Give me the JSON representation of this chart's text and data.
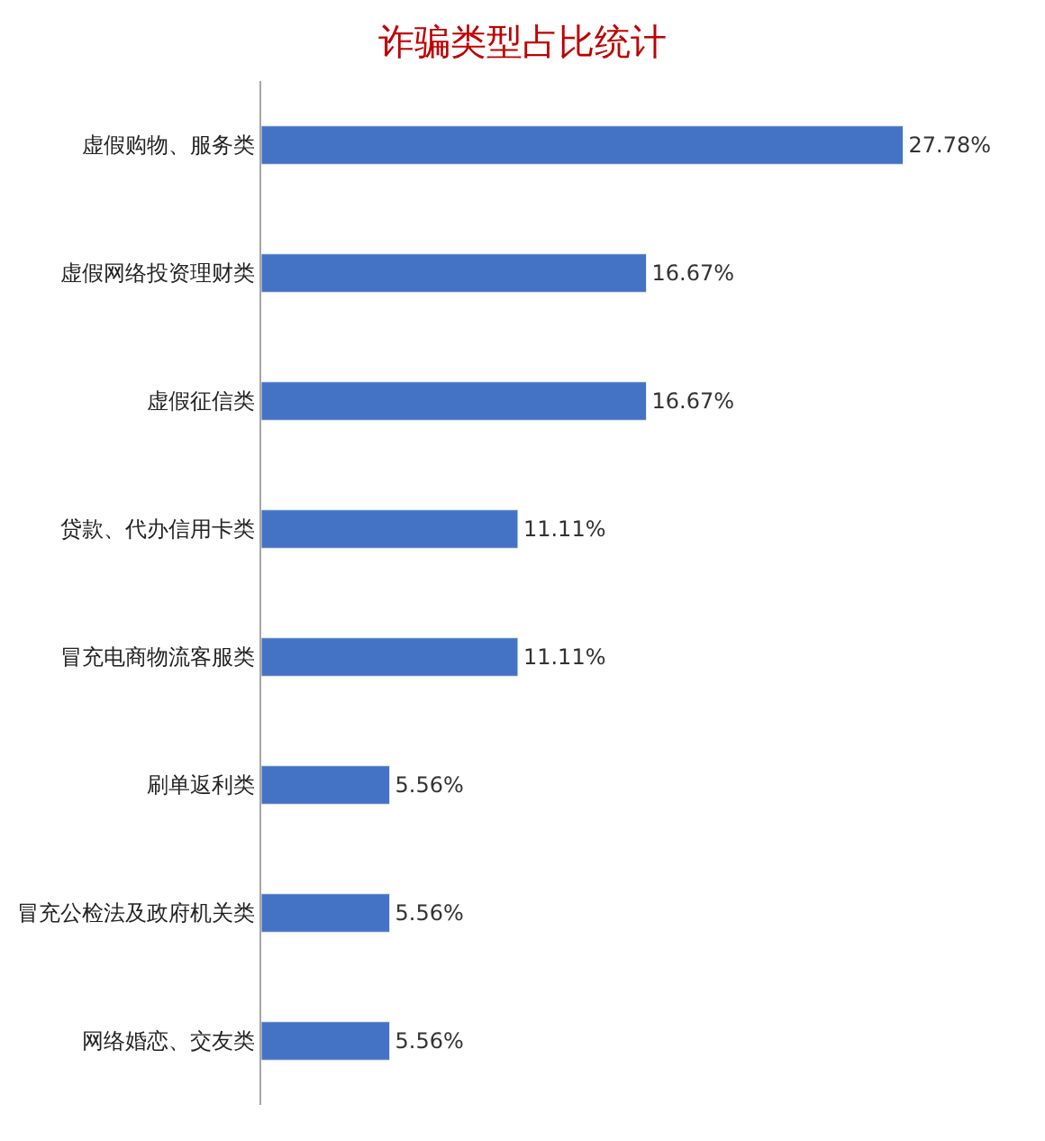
{
  "chart_data": {
    "type": "bar",
    "orientation": "horizontal",
    "title": "诈骗类型占比统计",
    "tick_labels": "y",
    "legend": false,
    "categories": [
      "虚假购物、服务类",
      "虚假网络投资理财类",
      "虚假征信类",
      "贷款、代办信用卡类",
      "冒充电商物流客服类",
      "刷单返利类",
      "冒充公检法及政府机关类",
      "网络婚恋、交友类"
    ],
    "values": [
      27.78,
      16.67,
      16.67,
      11.11,
      11.11,
      5.56,
      5.56,
      5.56
    ],
    "value_labels": [
      "27.78%",
      "16.67%",
      "16.67%",
      "11.11%",
      "11.11%",
      "5.56%",
      "5.56%",
      "5.56%"
    ],
    "color": "#4472c4"
  }
}
